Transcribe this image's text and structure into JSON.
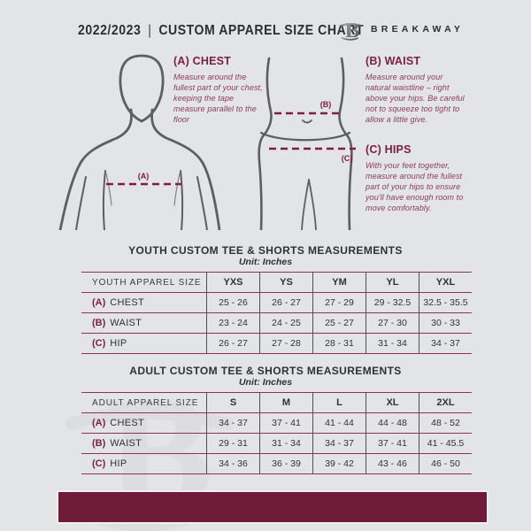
{
  "header": {
    "year": "2022/2023",
    "separator": "|",
    "title": "CUSTOM APPAREL SIZE CHART",
    "brand": "BREAKAWAY",
    "logo_letter": "B"
  },
  "instructions": [
    {
      "id": "A",
      "label": "(A) CHEST",
      "text": "Measure around the fullest part of your chest, keeping the tape measure parallel to the floor"
    },
    {
      "id": "B",
      "label": "(B) WAIST",
      "text": "Measure around your natural waistline – right above your hips. Be careful not to squeeze too tight to allow a little give."
    },
    {
      "id": "C",
      "label": "(C) HIPS",
      "text": "With your feet together, measure around the fullest part of your hips to ensure you'll have enough room to move comfortably."
    }
  ],
  "diagram_labels": {
    "chest": "(A)",
    "waist": "(B)",
    "hips": "(C)"
  },
  "tables": [
    {
      "title": "YOUTH CUSTOM TEE & SHORTS MEASUREMENTS",
      "unit": "Unit: Inches",
      "header_label": "YOUTH APPAREL SIZE",
      "sizes": [
        "YXS",
        "YS",
        "YM",
        "YL",
        "YXL"
      ],
      "rows": [
        {
          "key": "(A)",
          "name": "CHEST",
          "values": [
            "25 - 26",
            "26 - 27",
            "27 - 29",
            "29 - 32.5",
            "32.5 - 35.5"
          ]
        },
        {
          "key": "(B)",
          "name": "WAIST",
          "values": [
            "23 - 24",
            "24 - 25",
            "25 - 27",
            "27 - 30",
            "30 - 33"
          ]
        },
        {
          "key": "(C)",
          "name": "HIP",
          "values": [
            "26 - 27",
            "27 - 28",
            "28 - 31",
            "31 - 34",
            "34 - 37"
          ]
        }
      ]
    },
    {
      "title": "ADULT CUSTOM TEE & SHORTS MEASUREMENTS",
      "unit": "Unit: Inches",
      "header_label": "ADULT APPAREL SIZE",
      "sizes": [
        "S",
        "M",
        "L",
        "XL",
        "2XL"
      ],
      "rows": [
        {
          "key": "(A)",
          "name": "CHEST",
          "values": [
            "34 - 37",
            "37 - 41",
            "41 - 44",
            "44 - 48",
            "48 - 52"
          ]
        },
        {
          "key": "(B)",
          "name": "WAIST",
          "values": [
            "29 - 31",
            "31 - 34",
            "34 - 37",
            "37 - 41",
            "41 - 45.5"
          ]
        },
        {
          "key": "(C)",
          "name": "HIP",
          "values": [
            "34 - 36",
            "36 - 39",
            "39 - 42",
            "43 - 46",
            "46 - 50"
          ]
        }
      ]
    }
  ],
  "colors": {
    "background": "#e3e4e5",
    "maroon": "#7c2040",
    "table_border": "#8e3355",
    "footer_bar": "#6e1c38",
    "text": "#2f3237"
  }
}
